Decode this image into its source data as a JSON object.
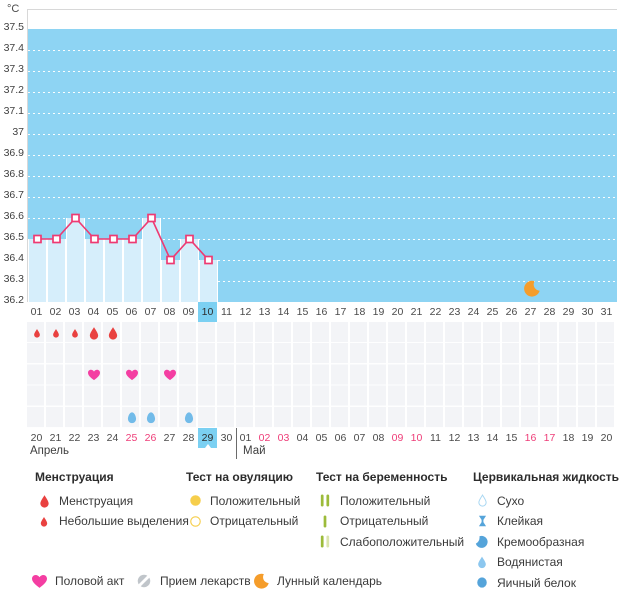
{
  "colors": {
    "plot_bg": "#8ed4f3",
    "plot_fill": "#d6eefb",
    "line": "#ee3a72",
    "highlight": "#7bd0f2",
    "weekend": "#ee3d78",
    "menstruation": "#e94140",
    "heart": "#f43ea2",
    "ovulation": "#f6ce4b",
    "pregnancy": "#9cbb3a",
    "pregnancy_weak": "#dbe5ae",
    "cervical": "#55a4da",
    "cervical_light": "#8cc7ef",
    "cervical_outline": "#a8d7f2",
    "egg_row": "#72bbe9",
    "moon": "#f59d2b",
    "pill": "#c0c5ca"
  },
  "chart_data": {
    "type": "line",
    "title": "",
    "xlabel": "",
    "ylabel": "°C",
    "ylim": [
      36.2,
      37.5
    ],
    "ytick_step": 0.1,
    "ytick_labels": [
      "37.5",
      "37.4",
      "37.3",
      "37.2",
      "37.1",
      "37",
      "36.9",
      "36.8",
      "36.7",
      "36.6",
      "36.5",
      "36.4",
      "36.3",
      "36.2"
    ],
    "grid": "horizontal-dotted-white",
    "legend_position": "bottom",
    "cycle_days": [
      "01",
      "02",
      "03",
      "04",
      "05",
      "06",
      "07",
      "08",
      "09",
      "10",
      "11",
      "12",
      "13",
      "14",
      "15",
      "16",
      "17",
      "18",
      "19",
      "20",
      "21",
      "22",
      "23",
      "24",
      "25",
      "26",
      "27",
      "28",
      "29",
      "30",
      "31"
    ],
    "highlighted_cycle_day": "10",
    "moon_calendar_cycle_day": 27,
    "series": [
      {
        "name": "temperature",
        "points": [
          {
            "day": 1,
            "value": 36.5
          },
          {
            "day": 2,
            "value": 36.5
          },
          {
            "day": 3,
            "value": 36.6
          },
          {
            "day": 4,
            "value": 36.5
          },
          {
            "day": 5,
            "value": 36.5
          },
          {
            "day": 6,
            "value": 36.5
          },
          {
            "day": 7,
            "value": 36.6
          },
          {
            "day": 8,
            "value": 36.4
          },
          {
            "day": 9,
            "value": 36.5
          },
          {
            "day": 10,
            "value": 36.4
          }
        ]
      }
    ]
  },
  "symbol_rows": [
    {
      "name": "menstruation",
      "entries": [
        {
          "day": 1,
          "icon": "drop-small"
        },
        {
          "day": 2,
          "icon": "drop-small"
        },
        {
          "day": 3,
          "icon": "drop-small"
        },
        {
          "day": 4,
          "icon": "drop-large"
        },
        {
          "day": 5,
          "icon": "drop-large"
        }
      ]
    },
    {
      "name": "ovulation-test",
      "entries": []
    },
    {
      "name": "intercourse",
      "entries": [
        {
          "day": 4,
          "icon": "heart"
        },
        {
          "day": 6,
          "icon": "heart"
        },
        {
          "day": 8,
          "icon": "heart"
        }
      ]
    },
    {
      "name": "pregnancy-test",
      "entries": []
    },
    {
      "name": "cervical-fluid",
      "entries": [
        {
          "day": 6,
          "icon": "egg"
        },
        {
          "day": 7,
          "icon": "egg"
        },
        {
          "day": 9,
          "icon": "egg"
        }
      ]
    }
  ],
  "calendar_row": {
    "months": [
      {
        "label": "Апрель",
        "days": [
          "20",
          "21",
          "22",
          "23",
          "24",
          "25",
          "26",
          "27",
          "28",
          "29",
          "30"
        ],
        "weekend_days": [
          "25",
          "26"
        ],
        "highlighted_day": "29"
      },
      {
        "label": "Май",
        "days": [
          "01",
          "02",
          "03",
          "04",
          "05",
          "06",
          "07",
          "08",
          "09",
          "10",
          "11",
          "12",
          "13",
          "14",
          "15",
          "16",
          "17",
          "18",
          "19",
          "20"
        ],
        "weekend_days": [
          "02",
          "03",
          "09",
          "10",
          "16",
          "17"
        ]
      }
    ]
  },
  "legend": {
    "sections": [
      {
        "title": "Менструация",
        "items": [
          {
            "icon": "drop-large",
            "label": "Менструация"
          },
          {
            "icon": "drop-small",
            "label": "Небольшие выделения"
          }
        ]
      },
      {
        "title": "Тест на овуляцию",
        "items": [
          {
            "icon": "circle-filled",
            "label": "Положительный"
          },
          {
            "icon": "circle-outline",
            "label": "Отрицательный"
          }
        ]
      },
      {
        "title": "Тест на беременность",
        "items": [
          {
            "icon": "test-positive",
            "label": "Положительный"
          },
          {
            "icon": "test-negative",
            "label": "Отрицательный"
          },
          {
            "icon": "test-weak",
            "label": "Слабоположительный"
          }
        ]
      },
      {
        "title": "Цервикальная жидкость",
        "items": [
          {
            "icon": "drop-outline",
            "label": "Сухо"
          },
          {
            "icon": "sticky",
            "label": "Клейкая"
          },
          {
            "icon": "creamy",
            "label": "Кремообразная"
          },
          {
            "icon": "watery",
            "label": "Водянистая"
          },
          {
            "icon": "egg-white",
            "label": "Яичный белок"
          }
        ]
      }
    ],
    "footer_items": [
      {
        "icon": "heart",
        "label": "Половой акт"
      },
      {
        "icon": "pill",
        "label": "Прием лекарств"
      },
      {
        "icon": "moon",
        "label": "Лунный календарь"
      }
    ]
  }
}
